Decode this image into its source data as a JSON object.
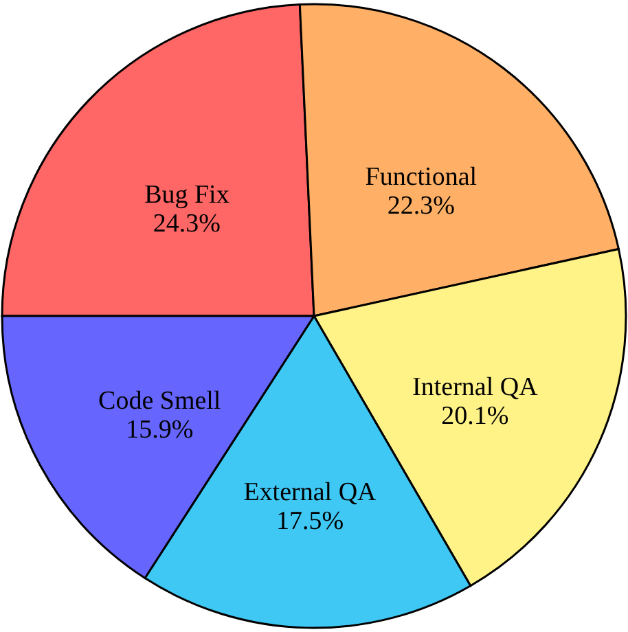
{
  "chart_data": {
    "type": "pie",
    "categories": [
      "Bug Fix",
      "Functional",
      "Internal QA",
      "External QA",
      "Code Smell"
    ],
    "values": [
      24.3,
      22.3,
      20.1,
      17.5,
      15.9
    ],
    "value_labels": [
      "24.3%",
      "22.3%",
      "20.1%",
      "17.5%",
      "15.9%"
    ],
    "colors": [
      "#ff6666",
      "#ffb066",
      "#fff388",
      "#40c8f4",
      "#6666ff"
    ]
  }
}
